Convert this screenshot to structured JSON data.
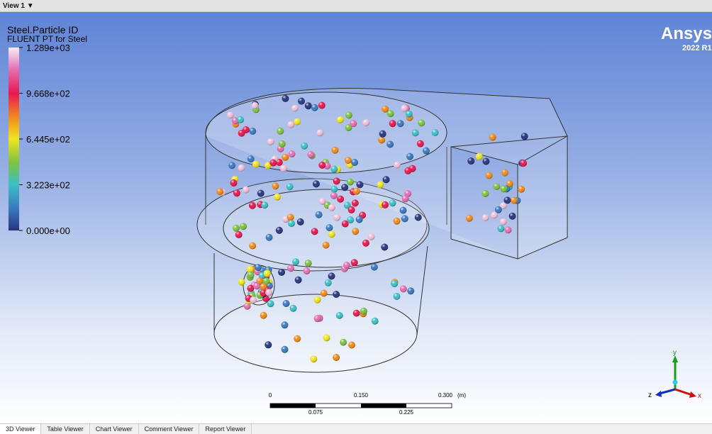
{
  "view": {
    "title": "View 1"
  },
  "legend": {
    "variable": "Steel.Particle ID",
    "subtitle": "FLUENT PT for Steel",
    "labels": [
      "1.289e+03",
      "9.668e+02",
      "6.445e+02",
      "3.223e+02",
      "0.000e+00"
    ]
  },
  "branding": {
    "logo": "Ansys",
    "version": "2022 R1"
  },
  "scale": {
    "top_labels": [
      "0",
      "0.150",
      "0.300"
    ],
    "unit": "(m)",
    "bottom_labels": [
      "0.075",
      "0.225"
    ]
  },
  "axes": {
    "y": "y",
    "z": "z",
    "x": "x"
  },
  "tabs": [
    "3D Viewer",
    "Table Viewer",
    "Chart Viewer",
    "Comment Viewer",
    "Report Viewer"
  ]
}
